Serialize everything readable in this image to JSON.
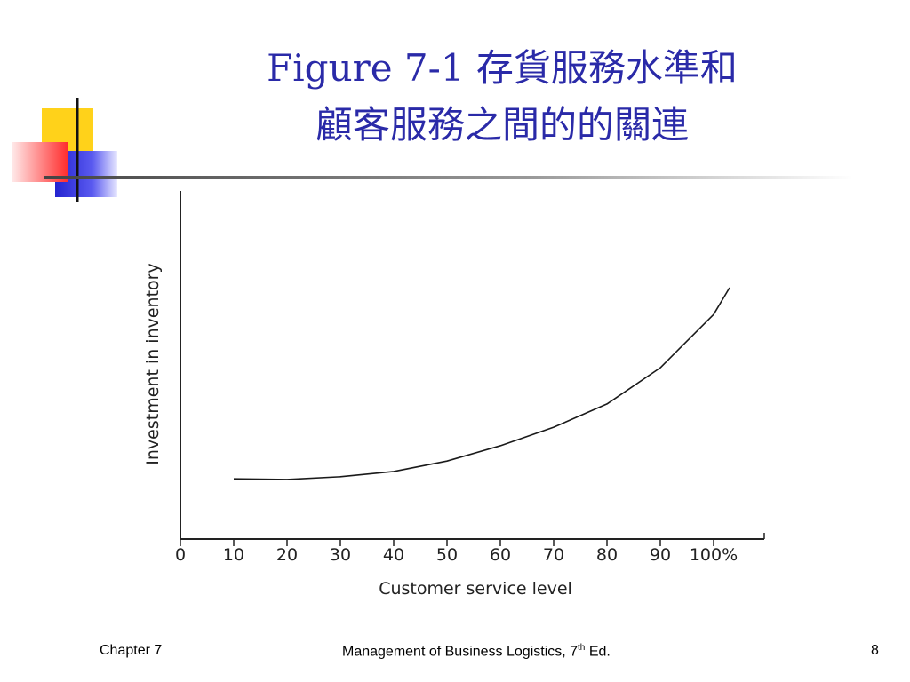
{
  "chart_data": {
    "type": "line",
    "title": [
      "Figure 7-1  存貨服務水準和",
      "顧客服務之間的的關連"
    ],
    "x_label": "Customer service level",
    "y_label": "Investment in inventory",
    "x": [
      10,
      20,
      30,
      40,
      50,
      60,
      70,
      80,
      90,
      100,
      103
    ],
    "values": [
      17.3,
      17.1,
      17.9,
      19.4,
      22.4,
      26.8,
      32.1,
      38.8,
      49.2,
      64.5,
      72.2
    ],
    "color": "#1a1a1a",
    "xlim": [
      0,
      110
    ],
    "ylim": [
      0,
      100
    ],
    "xticks": [
      0,
      10,
      20,
      30,
      40,
      50,
      60,
      70,
      80,
      90,
      {
        "value": 100,
        "label": "100%"
      }
    ]
  },
  "footer": {
    "left": "Chapter 7",
    "center": [
      "Management of Business Logistics, 7",
      "th",
      " Ed."
    ],
    "right": "8"
  }
}
